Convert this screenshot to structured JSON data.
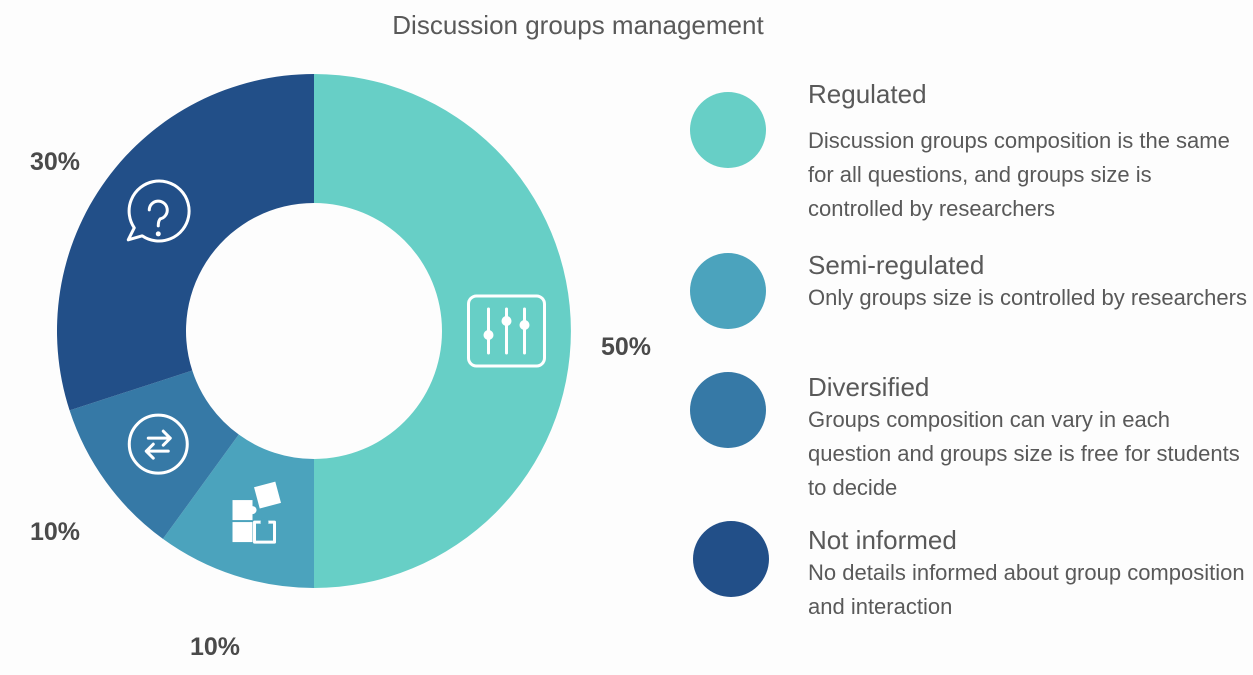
{
  "chart_data": {
    "type": "pie",
    "variant": "donut",
    "title": "Discussion groups management",
    "categories": [
      "Regulated",
      "Semi-regulated",
      "Diversified",
      "Not informed"
    ],
    "values": [
      50,
      10,
      10,
      30
    ],
    "value_labels": [
      "50%",
      "10%",
      "10%",
      "30%"
    ],
    "descriptions": [
      "Discussion groups composition is the same for all questions, and groups size is controlled by researchers",
      "Only groups size is controlled by researchers",
      "Groups composition can vary in each question and groups size is free for students to decide",
      "No details informed about group composition and interaction"
    ],
    "colors": [
      "#67cfc6",
      "#4ba3bd",
      "#3679a6",
      "#224f88"
    ],
    "icons": [
      "sliders-icon",
      "puzzle-icon",
      "exchange-arrows-icon",
      "question-chat-icon"
    ],
    "legend_placement": "right"
  }
}
